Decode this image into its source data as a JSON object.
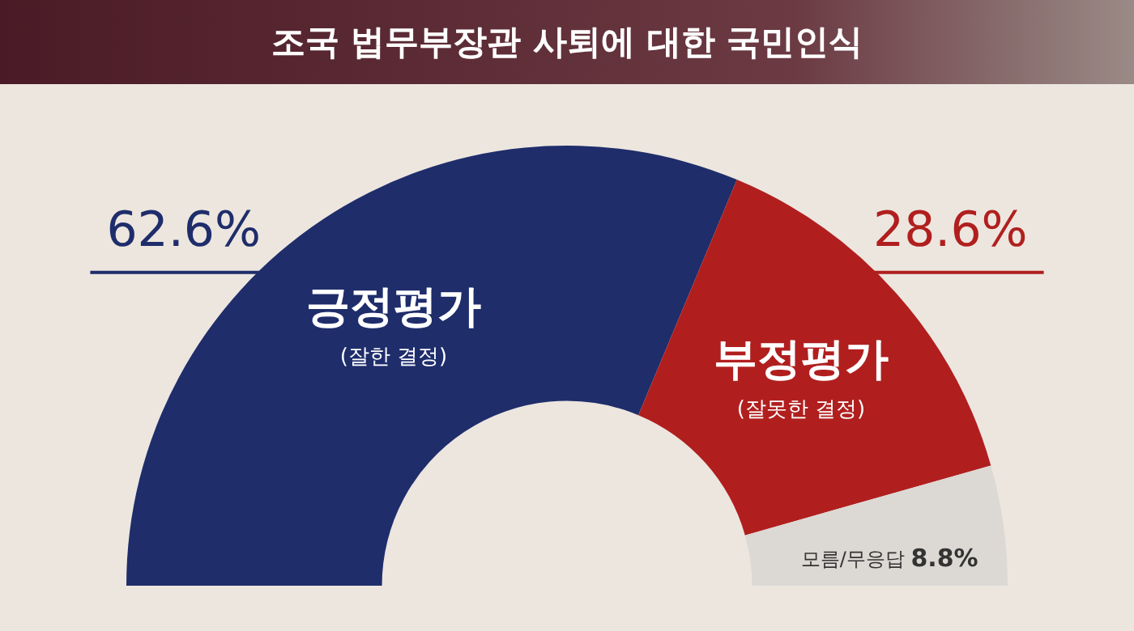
{
  "chart_data": {
    "type": "donut",
    "title": "조국 법무부장관 사퇴에 대한 국민인식",
    "categories": [
      "긍정평가",
      "부정평가",
      "모름/무응답"
    ],
    "values": [
      62.6,
      28.6,
      8.8
    ],
    "colors": [
      "#1f2d6b",
      "#b01f1e",
      "#dcd8d4"
    ],
    "value_labels": [
      "62.6%",
      "28.6%",
      "8.8%"
    ],
    "annotations": [
      "(잘한 결정)",
      "(잘못한 결정)"
    ]
  }
}
